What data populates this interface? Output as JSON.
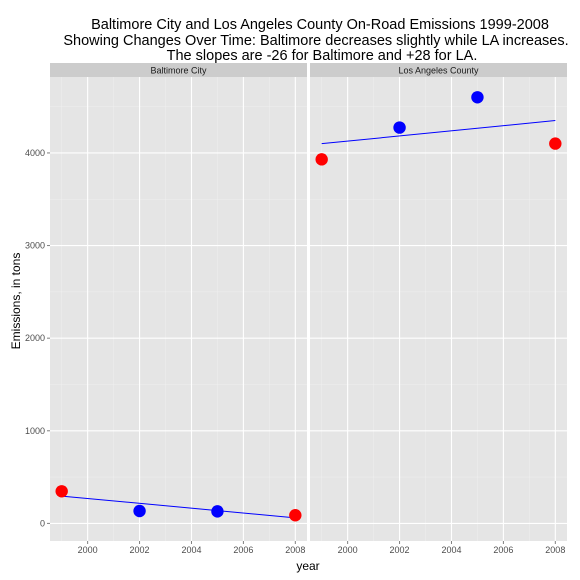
{
  "chart_data": {
    "type": "scatter",
    "title": [
      "Baltimore City and Los Angeles County On-Road Emissions 1999-2008",
      "Showing Changes Over Time: Baltimore decreases slightly while LA increases.",
      "The slopes are -26 for Baltimore and +28 for LA."
    ],
    "xlabel": "year",
    "ylabel": "Emissions, in tons",
    "xlim": [
      1998.55,
      2008.45
    ],
    "ylim": [
      -190,
      4820
    ],
    "x_ticks": [
      2000,
      2002,
      2004,
      2006,
      2008
    ],
    "y_ticks": [
      0,
      1000,
      2000,
      3000,
      4000
    ],
    "x_tick_labels": [
      "2000",
      "2002",
      "2004",
      "2006",
      "2008"
    ],
    "y_tick_labels": [
      "0",
      "1000",
      "2000",
      "3000",
      "4000"
    ],
    "grid": true,
    "colors": {
      "panel_bg": "#e5e5e5",
      "strip_bg": "#cccccc",
      "grid_major": "#ffffff",
      "grid_minor": "#f0f0f0",
      "point_high": "#ff0000",
      "point_low": "#0000ff",
      "fit_line": "#0000ff"
    },
    "panels": [
      {
        "name": "Baltimore City",
        "points": [
          {
            "x": 1999,
            "y": 347,
            "color": "red"
          },
          {
            "x": 2002,
            "y": 134,
            "color": "blue"
          },
          {
            "x": 2005,
            "y": 130,
            "color": "blue"
          },
          {
            "x": 2008,
            "y": 88,
            "color": "red"
          }
        ],
        "fit_line": {
          "x": [
            1999,
            2008
          ],
          "y": [
            295,
            60
          ]
        }
      },
      {
        "name": "Los Angeles County",
        "points": [
          {
            "x": 1999,
            "y": 3931,
            "color": "red"
          },
          {
            "x": 2002,
            "y": 4274,
            "color": "blue"
          },
          {
            "x": 2005,
            "y": 4601,
            "color": "blue"
          },
          {
            "x": 2008,
            "y": 4101,
            "color": "red"
          }
        ],
        "fit_line": {
          "x": [
            1999,
            2008
          ],
          "y": [
            4100,
            4350
          ]
        }
      }
    ]
  }
}
